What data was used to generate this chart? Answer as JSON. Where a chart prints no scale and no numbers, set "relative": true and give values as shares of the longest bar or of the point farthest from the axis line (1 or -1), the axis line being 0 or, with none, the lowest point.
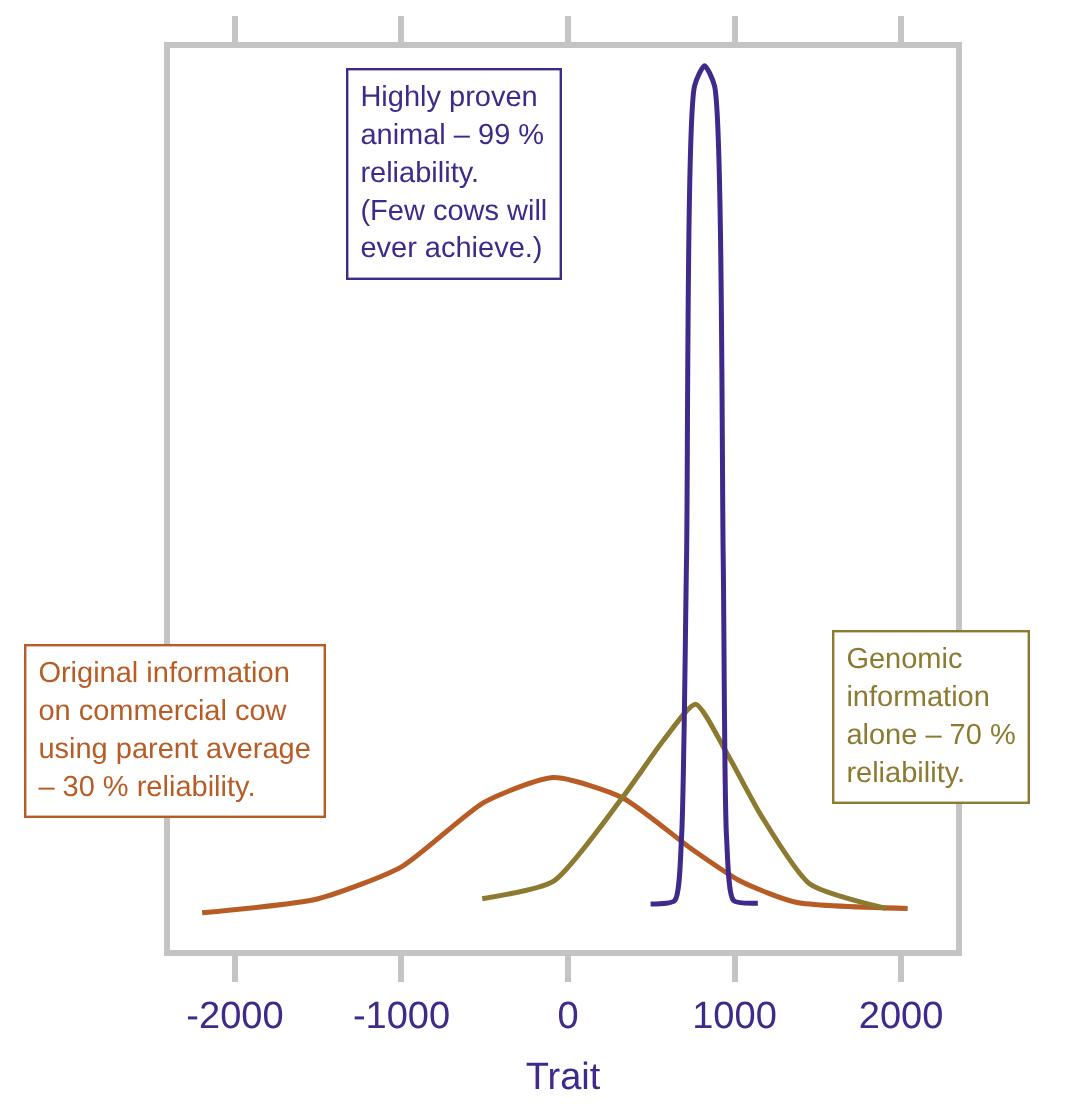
{
  "chart_data": {
    "type": "line",
    "relative": true,
    "xlabel": "Trait",
    "xlim": [
      -2390,
      2330
    ],
    "xticks": [
      -2000,
      -1000,
      0,
      1000,
      2000
    ],
    "grid": false,
    "marker": "none",
    "line_style": "solid",
    "series": [
      {
        "color": "#b85c25",
        "x": [
          -2197,
          -1500,
          -1000,
          -504,
          -86,
          329,
          744,
          1034,
          1368,
          2040
        ],
        "values": [
          0.042,
          0.058,
          0.094,
          0.167,
          0.195,
          0.172,
          0.114,
          0.078,
          0.054,
          0.047
        ]
      },
      {
        "color": "#8b7a30",
        "x": [
          -515,
          -86,
          329,
          577,
          766,
          950,
          1160,
          1450,
          1910
        ],
        "values": [
          0.058,
          0.078,
          0.173,
          0.238,
          0.278,
          0.224,
          0.152,
          0.075,
          0.047
        ]
      },
      {
        "color": "#3f2a8c",
        "x": [
          496,
          641,
          682,
          712,
          760,
          820,
          880,
          932,
          952,
          994,
          1140
        ],
        "values": [
          0.052,
          0.056,
          0.128,
          0.444,
          0.977,
          1,
          0.977,
          0.444,
          0.128,
          0.056,
          0.053
        ]
      }
    ],
    "annotations": [
      "Highly proven animal – 99 % reliability. (Few cows will ever achieve.)",
      "Original information on commercial cow using parent average – 30 % reliability.",
      "Genomic information alone – 70 % reliability."
    ]
  }
}
